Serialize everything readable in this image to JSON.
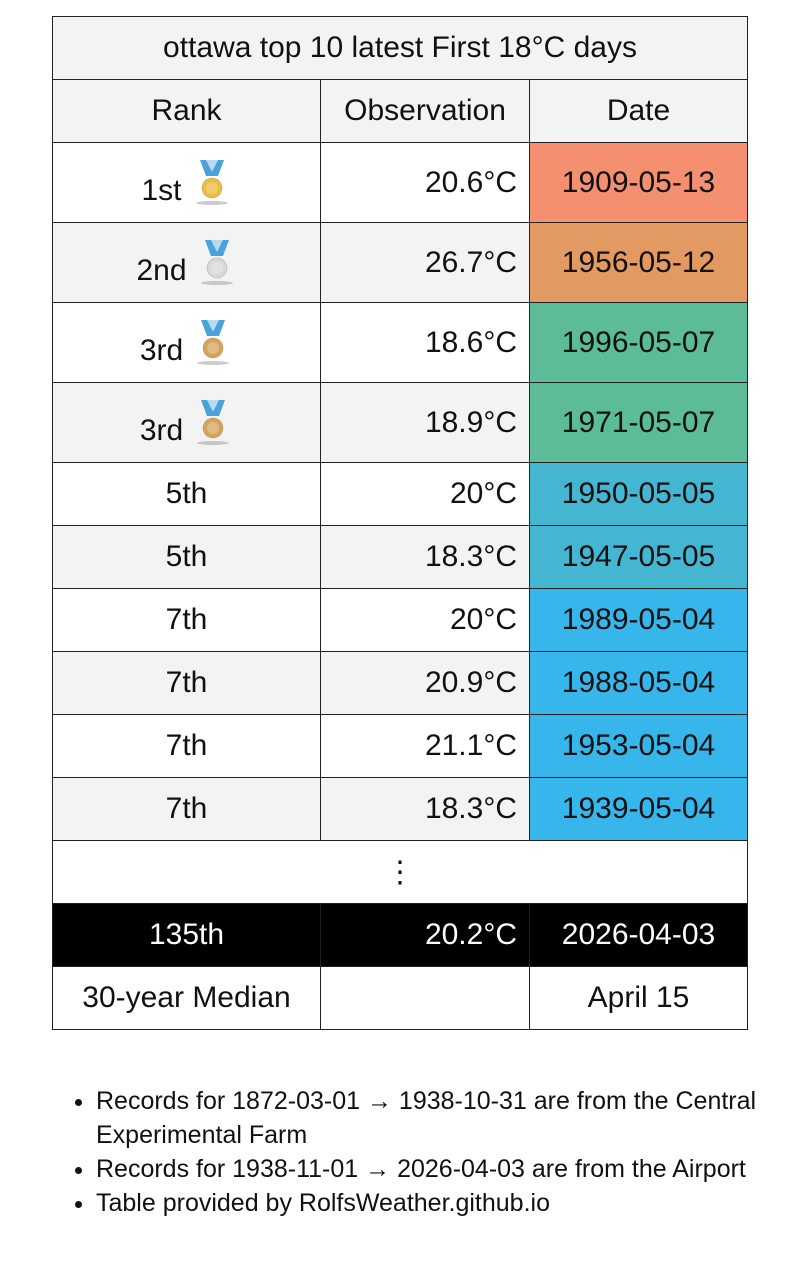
{
  "table": {
    "title": "ottawa top 10 latest First 18°C days",
    "headers": [
      "Rank",
      "Observation",
      "Date"
    ],
    "rows": [
      {
        "rank": "1st",
        "observation": "20.6°C",
        "date": "1909-05-13",
        "color": "#f4906f",
        "medal": "#e9bd3f"
      },
      {
        "rank": "2nd",
        "observation": "26.7°C",
        "date": "1956-05-12",
        "color": "#e39a62",
        "medal": "#d9d9d9"
      },
      {
        "rank": "3rd",
        "observation": "18.6°C",
        "date": "1996-05-07",
        "color": "#5dbc98",
        "medal": "#d6a35a"
      },
      {
        "rank": "3rd",
        "observation": "18.9°C",
        "date": "1971-05-07",
        "color": "#5dbc98",
        "medal": "#d6a35a"
      },
      {
        "rank": "5th",
        "observation": "20°C",
        "date": "1950-05-05",
        "color": "#45b6d1"
      },
      {
        "rank": "5th",
        "observation": "18.3°C",
        "date": "1947-05-05",
        "color": "#45b6d1"
      },
      {
        "rank": "7th",
        "observation": "20°C",
        "date": "1989-05-04",
        "color": "#36b6eb"
      },
      {
        "rank": "7th",
        "observation": "20.9°C",
        "date": "1988-05-04",
        "color": "#36b6eb"
      },
      {
        "rank": "7th",
        "observation": "21.1°C",
        "date": "1953-05-04",
        "color": "#36b6eb"
      },
      {
        "rank": "7th",
        "observation": "18.3°C",
        "date": "1939-05-04",
        "color": "#36b6eb"
      }
    ],
    "ellipsis": "⋮",
    "current": {
      "rank": "135th",
      "observation": "20.2°C",
      "date": "2026-04-03"
    },
    "median": {
      "label": "30-year Median",
      "date": "April 15"
    }
  },
  "notes": [
    "Records for 1872-03-01 → 1938-10-31 are from the Central Experimental Farm",
    "Records for 1938-11-01 → 2026-04-03 are from the Airport",
    "Table provided by RolfsWeather.github.io"
  ]
}
